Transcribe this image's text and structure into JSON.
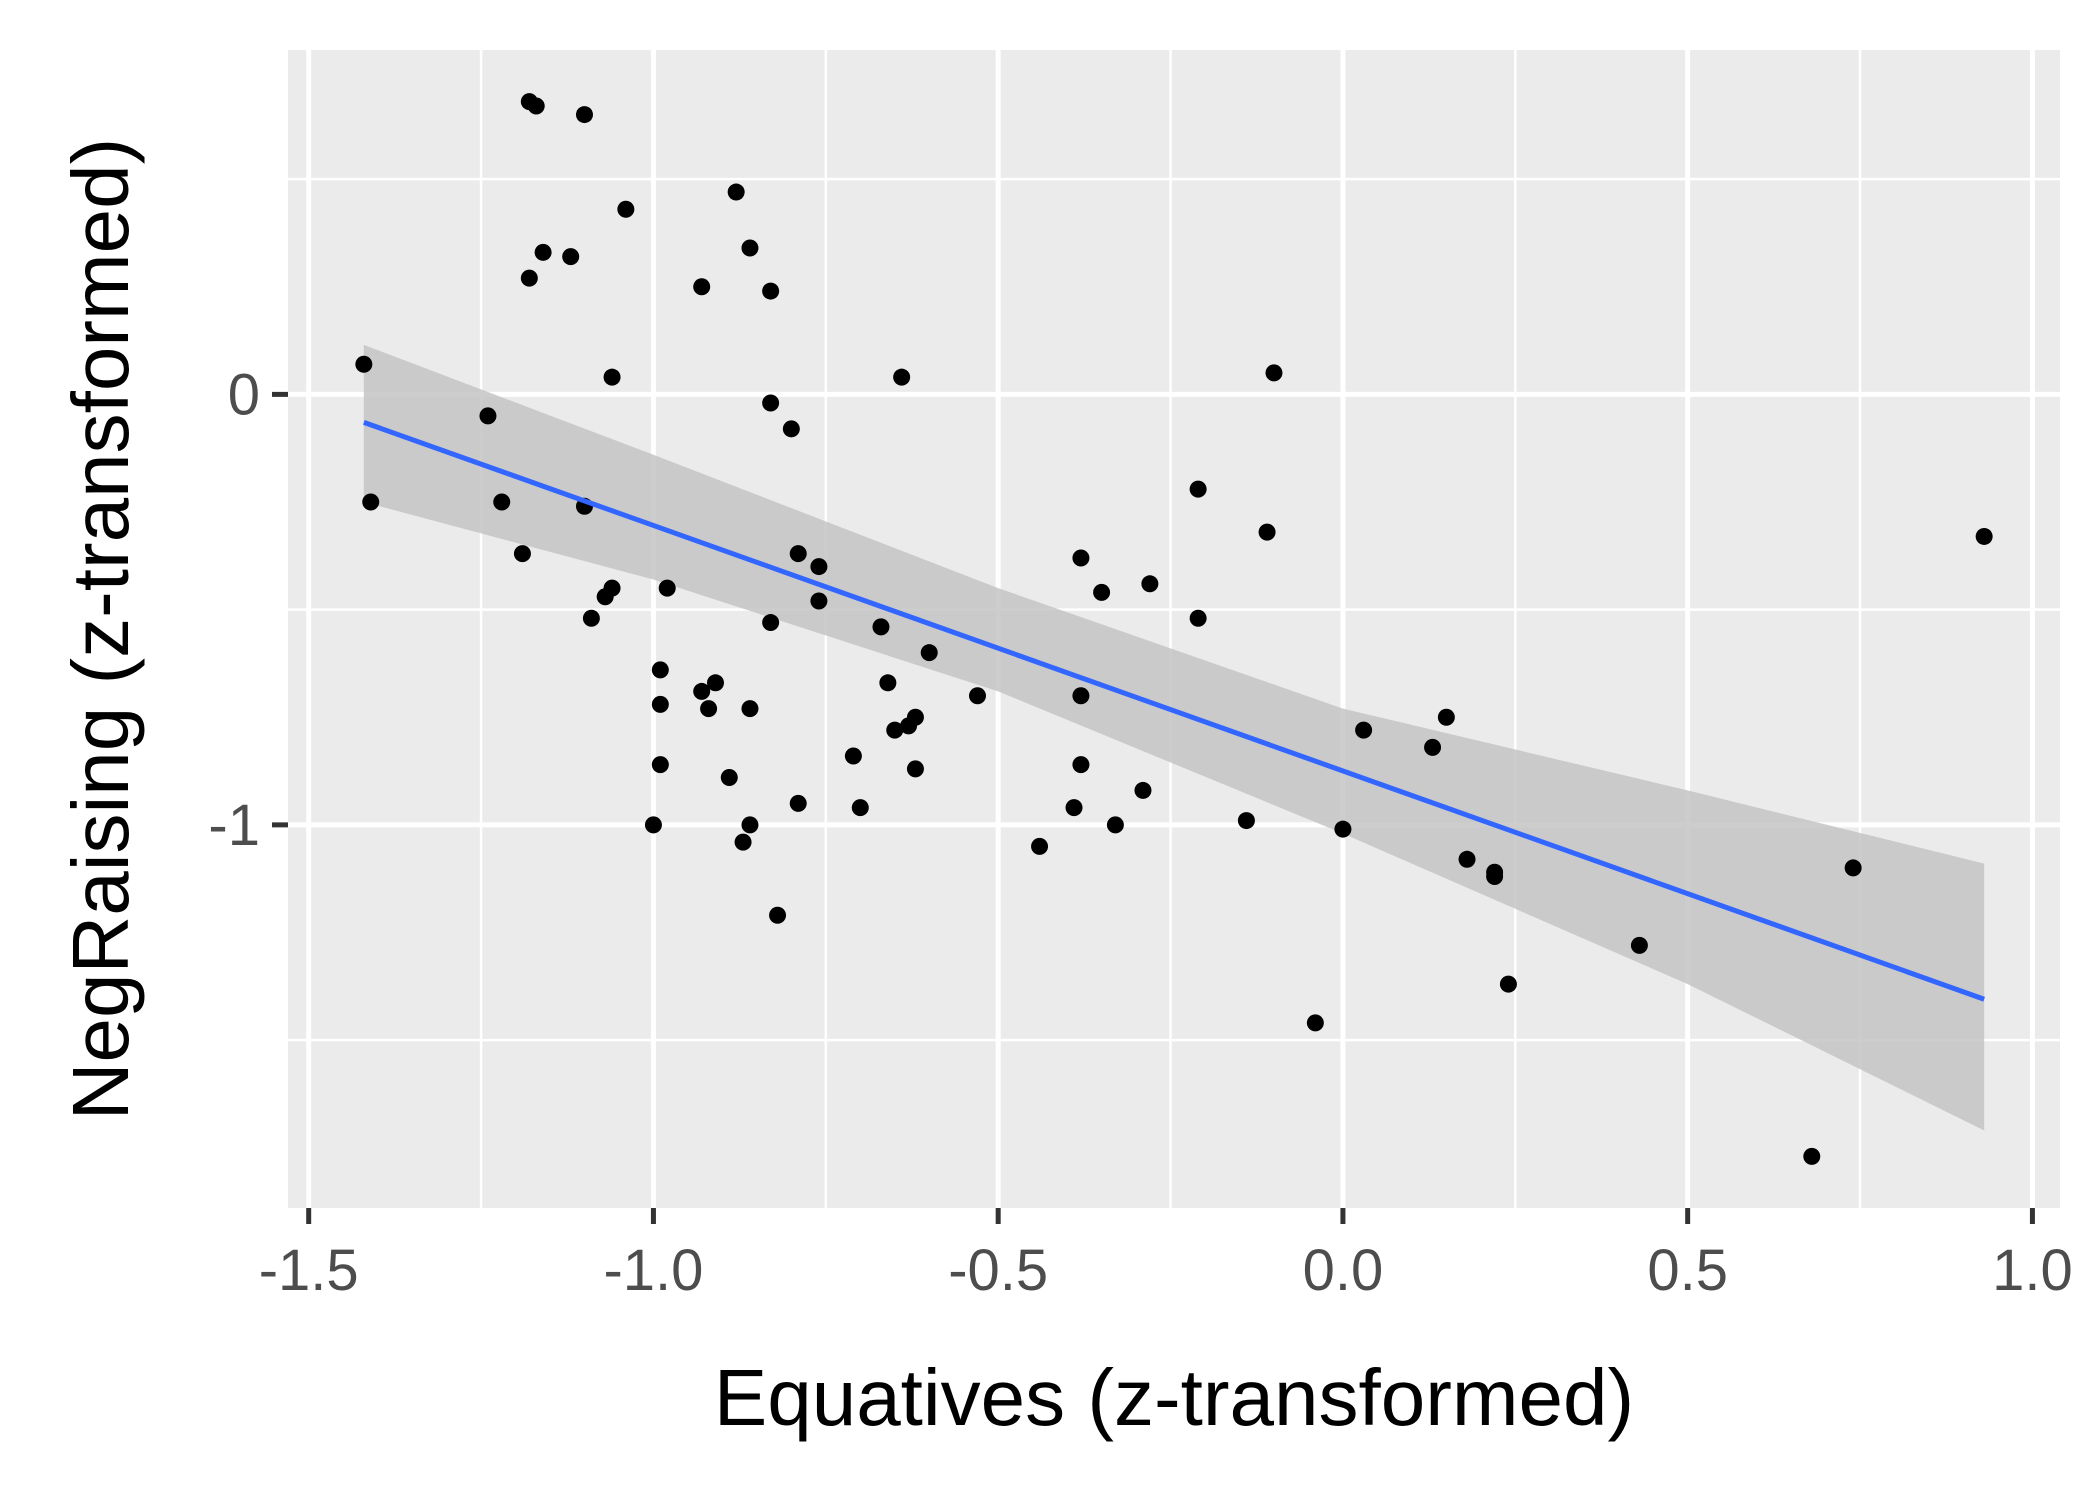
{
  "chart_data": {
    "type": "scatter",
    "title": "",
    "xlabel": "Equatives (z-transformed)",
    "ylabel": "NegRaising (z-transformed)",
    "xlim": [
      -1.53,
      1.04
    ],
    "ylim": [
      -1.89,
      0.8
    ],
    "x_ticks": [
      -1.5,
      -1.0,
      -0.5,
      0.0,
      0.5,
      1.0
    ],
    "x_tick_labels": [
      "-1.5",
      "-1.0",
      "-0.5",
      "0.0",
      "0.5",
      "1.0"
    ],
    "y_ticks": [
      0,
      -1
    ],
    "y_tick_labels": [
      "0",
      "-1"
    ],
    "grid": true,
    "colors": {
      "panel_bg": "#ebebeb",
      "grid": "#ffffff",
      "point": "#000000",
      "fit_line": "#3366ff",
      "confidence_band": "#c4c4c4",
      "tick": "#333333"
    },
    "points": [
      {
        "x": -1.42,
        "y": 0.07
      },
      {
        "x": -1.41,
        "y": -0.25
      },
      {
        "x": -1.24,
        "y": -0.05
      },
      {
        "x": -1.22,
        "y": -0.25
      },
      {
        "x": -1.19,
        "y": -0.37
      },
      {
        "x": -1.18,
        "y": 0.27
      },
      {
        "x": -1.18,
        "y": 0.68
      },
      {
        "x": -1.17,
        "y": 0.67
      },
      {
        "x": -1.16,
        "y": 0.33
      },
      {
        "x": -1.12,
        "y": 0.32
      },
      {
        "x": -1.1,
        "y": 0.65
      },
      {
        "x": -1.1,
        "y": -0.26
      },
      {
        "x": -1.09,
        "y": -0.52
      },
      {
        "x": -1.07,
        "y": -0.47
      },
      {
        "x": -1.06,
        "y": -0.45
      },
      {
        "x": -1.06,
        "y": 0.04
      },
      {
        "x": -1.04,
        "y": 0.43
      },
      {
        "x": -1.0,
        "y": -1.0
      },
      {
        "x": -0.99,
        "y": -0.72
      },
      {
        "x": -0.99,
        "y": -0.64
      },
      {
        "x": -0.99,
        "y": -0.86
      },
      {
        "x": -0.98,
        "y": -0.45
      },
      {
        "x": -0.93,
        "y": 0.25
      },
      {
        "x": -0.93,
        "y": -0.69
      },
      {
        "x": -0.92,
        "y": -0.73
      },
      {
        "x": -0.91,
        "y": -0.67
      },
      {
        "x": -0.89,
        "y": -0.89
      },
      {
        "x": -0.88,
        "y": 0.47
      },
      {
        "x": -0.87,
        "y": -1.04
      },
      {
        "x": -0.86,
        "y": -1.0
      },
      {
        "x": -0.86,
        "y": -0.73
      },
      {
        "x": -0.86,
        "y": 0.34
      },
      {
        "x": -0.83,
        "y": -0.02
      },
      {
        "x": -0.83,
        "y": 0.24
      },
      {
        "x": -0.83,
        "y": -0.53
      },
      {
        "x": -0.82,
        "y": -1.21
      },
      {
        "x": -0.8,
        "y": -0.08
      },
      {
        "x": -0.79,
        "y": -0.37
      },
      {
        "x": -0.79,
        "y": -0.95
      },
      {
        "x": -0.76,
        "y": -0.4
      },
      {
        "x": -0.76,
        "y": -0.48
      },
      {
        "x": -0.71,
        "y": -0.84
      },
      {
        "x": -0.7,
        "y": -0.96
      },
      {
        "x": -0.67,
        "y": -0.54
      },
      {
        "x": -0.66,
        "y": -0.67
      },
      {
        "x": -0.65,
        "y": -0.78
      },
      {
        "x": -0.64,
        "y": 0.04
      },
      {
        "x": -0.63,
        "y": -0.77
      },
      {
        "x": -0.62,
        "y": -0.75
      },
      {
        "x": -0.62,
        "y": -0.87
      },
      {
        "x": -0.6,
        "y": -0.6
      },
      {
        "x": -0.53,
        "y": -0.7
      },
      {
        "x": -0.44,
        "y": -1.05
      },
      {
        "x": -0.39,
        "y": -0.96
      },
      {
        "x": -0.38,
        "y": -0.7
      },
      {
        "x": -0.38,
        "y": -0.86
      },
      {
        "x": -0.38,
        "y": -0.38
      },
      {
        "x": -0.35,
        "y": -0.46
      },
      {
        "x": -0.33,
        "y": -1.0
      },
      {
        "x": -0.29,
        "y": -0.92
      },
      {
        "x": -0.28,
        "y": -0.44
      },
      {
        "x": -0.21,
        "y": -0.22
      },
      {
        "x": -0.21,
        "y": -0.52
      },
      {
        "x": -0.14,
        "y": -0.99
      },
      {
        "x": -0.11,
        "y": -0.32
      },
      {
        "x": -0.1,
        "y": 0.05
      },
      {
        "x": -0.04,
        "y": -1.46
      },
      {
        "x": 0.0,
        "y": -1.01
      },
      {
        "x": 0.03,
        "y": -0.78
      },
      {
        "x": 0.13,
        "y": -0.82
      },
      {
        "x": 0.15,
        "y": -0.75
      },
      {
        "x": 0.18,
        "y": -1.08
      },
      {
        "x": 0.22,
        "y": -1.11
      },
      {
        "x": 0.22,
        "y": -1.12
      },
      {
        "x": 0.24,
        "y": -1.37
      },
      {
        "x": 0.43,
        "y": -1.28
      },
      {
        "x": 0.68,
        "y": -1.77
      },
      {
        "x": 0.74,
        "y": -1.1
      },
      {
        "x": 0.93,
        "y": -0.33
      }
    ],
    "fit_line": {
      "x": [
        -1.42,
        0.93
      ],
      "y": [
        -0.065,
        -1.405
      ]
    },
    "confidence_band": {
      "x": [
        -1.42,
        -1.0,
        -0.5,
        0.0,
        0.5,
        0.93
      ],
      "upper": [
        0.115,
        -0.14,
        -0.45,
        -0.73,
        -0.92,
        -1.09
      ],
      "lower": [
        -0.25,
        -0.43,
        -0.69,
        -1.02,
        -1.37,
        -1.71
      ]
    }
  }
}
